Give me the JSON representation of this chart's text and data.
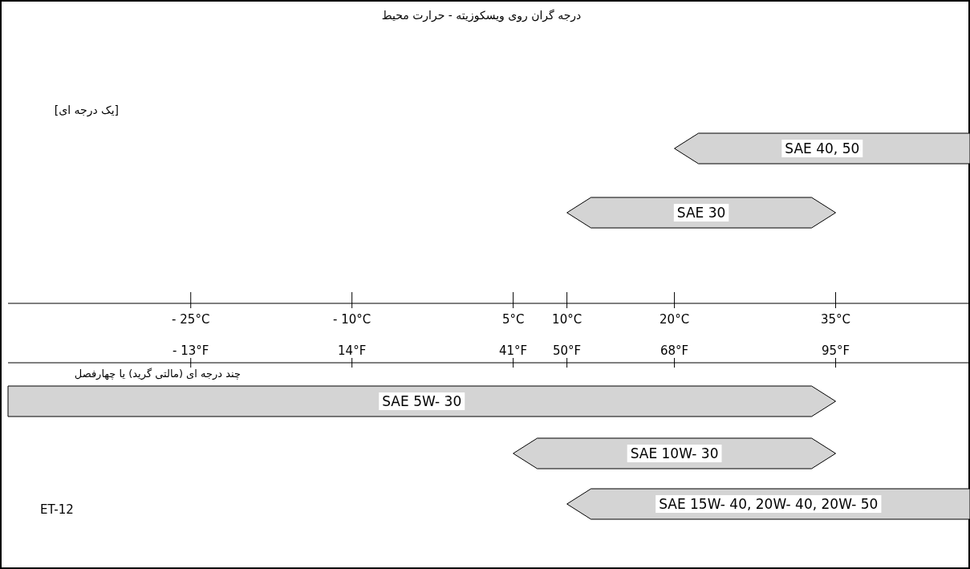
{
  "chart_data": [
    {
      "type": "bar",
      "orientation": "horizontal",
      "title": "درجه گران روی ویسکوزیته - حرارت محیط",
      "annotations": [
        "[یک درجه ای]"
      ],
      "categories": [
        "SAE 40, 50",
        "SAE 30"
      ],
      "base": [
        20,
        10
      ],
      "values": [
        27.5,
        25
      ],
      "color": "#d4d4d4",
      "xlim": [
        -42,
        47.5
      ],
      "xticks": [
        {
          "value": -25,
          "label": "- 25°C"
        },
        {
          "value": -10,
          "label": "- 10°C"
        },
        {
          "value": 5,
          "label": "5°C"
        },
        {
          "value": 10,
          "label": "10°C"
        },
        {
          "value": 20,
          "label": "20°C"
        },
        {
          "value": 35,
          "label": "35°C"
        }
      ]
    },
    {
      "type": "bar",
      "orientation": "horizontal",
      "annotations": [
        "چند درجه ای (مالتی گرید) یا چهارفصل",
        "ET-12"
      ],
      "categories": [
        "SAE 5W- 30",
        "SAE 10W- 30",
        "SAE 15W- 40, 20W- 40, 20W- 50"
      ],
      "base": [
        -43.6,
        41,
        50
      ],
      "values": [
        138.6,
        54,
        67.5
      ],
      "color": "#d4d4d4",
      "xlim": [
        -43.6,
        117.5
      ],
      "xticks": [
        {
          "value": -13,
          "label": "- 13°F"
        },
        {
          "value": 14,
          "label": "14°F"
        },
        {
          "value": 41,
          "label": "41°F"
        },
        {
          "value": 50,
          "label": "50°F"
        },
        {
          "value": 68,
          "label": "68°F"
        },
        {
          "value": 95,
          "label": "95°F"
        }
      ]
    }
  ]
}
